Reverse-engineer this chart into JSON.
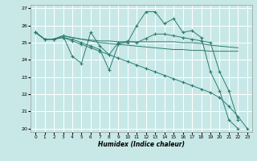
{
  "title": "",
  "xlabel": "Humidex (Indice chaleur)",
  "bg_color": "#c8e8e8",
  "grid_color": "#ffffff",
  "line_color": "#2e7d6e",
  "xlim": [
    -0.5,
    23.5
  ],
  "ylim": [
    19.8,
    27.2
  ],
  "xticks": [
    0,
    1,
    2,
    3,
    4,
    5,
    6,
    7,
    8,
    9,
    10,
    11,
    12,
    13,
    14,
    15,
    16,
    17,
    18,
    19,
    20,
    21,
    22,
    23
  ],
  "yticks": [
    20,
    21,
    22,
    23,
    24,
    25,
    26,
    27
  ],
  "series": {
    "s1": {
      "x": [
        0,
        1,
        2,
        3,
        4,
        5,
        6,
        7,
        8,
        9,
        10,
        11,
        12,
        13,
        14,
        15,
        16,
        17,
        18,
        19,
        20,
        21,
        22
      ],
      "y": [
        25.6,
        25.2,
        25.2,
        25.4,
        24.2,
        23.8,
        25.6,
        24.8,
        24.3,
        25.0,
        25.0,
        26.0,
        26.8,
        26.8,
        26.1,
        26.4,
        25.6,
        25.7,
        25.3,
        23.3,
        22.2,
        20.5,
        20.0
      ],
      "marker": true
    },
    "s2": {
      "x": [
        0,
        1,
        2,
        3,
        4,
        5,
        6,
        7,
        8,
        9,
        10,
        11,
        12,
        13,
        14,
        15,
        16,
        17,
        18,
        19,
        20,
        21,
        22
      ],
      "y": [
        25.6,
        25.2,
        25.2,
        25.4,
        25.3,
        25.2,
        25.15,
        25.1,
        25.1,
        25.05,
        25.05,
        25.05,
        25.05,
        25.05,
        25.05,
        25.05,
        25.0,
        25.0,
        24.95,
        24.85,
        24.8,
        24.75,
        24.7
      ],
      "marker": false
    },
    "s3": {
      "x": [
        0,
        1,
        2,
        3,
        4,
        5,
        6,
        7,
        8,
        9,
        10,
        11,
        12,
        13,
        14,
        15,
        16,
        17,
        18,
        19,
        20,
        21,
        22
      ],
      "y": [
        25.6,
        25.2,
        25.2,
        25.4,
        25.3,
        25.2,
        25.1,
        25.0,
        24.95,
        24.9,
        24.85,
        24.8,
        24.75,
        24.7,
        24.65,
        24.6,
        24.6,
        24.55,
        24.55,
        24.5,
        24.5,
        24.5,
        24.5
      ],
      "marker": false
    },
    "s4": {
      "x": [
        0,
        1,
        2,
        3,
        4,
        5,
        6,
        7,
        8,
        9,
        10,
        11,
        12,
        13,
        14,
        15,
        16,
        17,
        18,
        19,
        20,
        21,
        22
      ],
      "y": [
        25.6,
        25.2,
        25.2,
        25.3,
        25.2,
        25.0,
        24.8,
        24.6,
        23.4,
        24.9,
        25.1,
        25.0,
        25.25,
        25.5,
        25.5,
        25.4,
        25.3,
        25.2,
        25.1,
        25.0,
        23.3,
        22.2,
        20.5
      ],
      "marker": true
    },
    "s5": {
      "x": [
        0,
        1,
        2,
        3,
        4,
        5,
        6,
        7,
        8,
        9,
        10,
        11,
        12,
        13,
        14,
        15,
        16,
        17,
        18,
        19,
        20,
        21,
        22,
        23
      ],
      "y": [
        25.6,
        25.2,
        25.2,
        25.3,
        25.1,
        24.9,
        24.7,
        24.5,
        24.3,
        24.1,
        23.9,
        23.7,
        23.5,
        23.3,
        23.1,
        22.9,
        22.7,
        22.5,
        22.3,
        22.1,
        21.8,
        21.3,
        20.7,
        20.0
      ],
      "marker": true
    }
  }
}
